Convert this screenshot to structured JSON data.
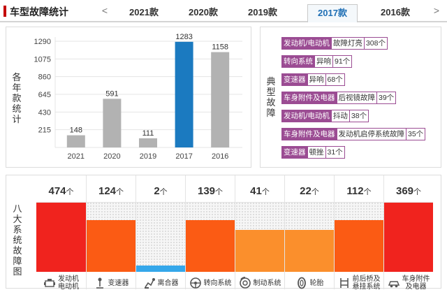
{
  "header": {
    "title": "车型故障统计",
    "prev_arrow": "<",
    "next_arrow": ">",
    "tabs": [
      "2021款",
      "2020款",
      "2019款",
      "2017款",
      "2016款"
    ],
    "active_tab": "2017款"
  },
  "year_chart": {
    "side_label": "各年款统计",
    "bar_color": "#b2b2b2",
    "highlight_color": "#1b7ac0"
  },
  "faults": {
    "side_label": "典型故障",
    "accent_color": "#9b4c93",
    "items": [
      {
        "system": "发动机/电动机",
        "symptom": "故障灯亮",
        "count": "308个"
      },
      {
        "system": "转向系统",
        "symptom": "异响",
        "count": "91个"
      },
      {
        "system": "变速器",
        "symptom": "异响",
        "count": "68个"
      },
      {
        "system": "车身附件及电器",
        "symptom": "后视镜故障",
        "count": "39个"
      },
      {
        "system": "发动机/电动机",
        "symptom": "抖动",
        "count": "38个"
      },
      {
        "system": "车身附件及电器",
        "symptom": "发动机启停系统故障",
        "count": "35个"
      },
      {
        "system": "变速器",
        "symptom": "顿挫",
        "count": "31个"
      }
    ]
  },
  "systems": {
    "side_label": "八大系统故障图",
    "unit": "个",
    "items": [
      {
        "label": "发动机\n电动机",
        "count": 474,
        "level": 1.0,
        "color": "#f0231e",
        "icon": "engine-icon"
      },
      {
        "label": "变速器",
        "count": 124,
        "level": 0.74,
        "color": "#fb5b14",
        "icon": "gearshift-icon"
      },
      {
        "label": "离合器",
        "count": 2,
        "level": 0.09,
        "color": "#35a7ea",
        "icon": "clutch-icon"
      },
      {
        "label": "转向系统",
        "count": 139,
        "level": 0.74,
        "color": "#fb5b14",
        "icon": "steering-wheel-icon"
      },
      {
        "label": "制动系统",
        "count": 41,
        "level": 0.6,
        "color": "#fb8f2c",
        "icon": "brake-disc-icon"
      },
      {
        "label": "轮胎",
        "count": 22,
        "level": 0.6,
        "color": "#fb8f2c",
        "icon": "tire-icon"
      },
      {
        "label": "前后桥及\n悬挂系统",
        "count": 112,
        "level": 0.74,
        "color": "#fb5b14",
        "icon": "suspension-icon"
      },
      {
        "label": "车身附件\n及电器",
        "count": 369,
        "level": 1.0,
        "color": "#f0231e",
        "icon": "car-body-icon"
      }
    ]
  },
  "chart_data": [
    {
      "type": "bar",
      "categories": [
        "2021",
        "2020",
        "2019",
        "2017",
        "2016"
      ],
      "values": [
        148,
        591,
        111,
        1283,
        1158
      ],
      "highlight": "2017",
      "ylabel": "各年款统计",
      "yticks": [
        215,
        430,
        645,
        860,
        1075,
        1290
      ],
      "ylim": [
        0,
        1290
      ],
      "grid": true
    },
    {
      "type": "bar",
      "categories": [
        "发动机/电动机",
        "变速器",
        "离合器",
        "转向系统",
        "制动系统",
        "轮胎",
        "前后桥及悬挂系统",
        "车身附件及电器"
      ],
      "values": [
        474,
        124,
        2,
        139,
        41,
        22,
        112,
        369
      ],
      "ylabel": "八大系统故障图"
    }
  ]
}
